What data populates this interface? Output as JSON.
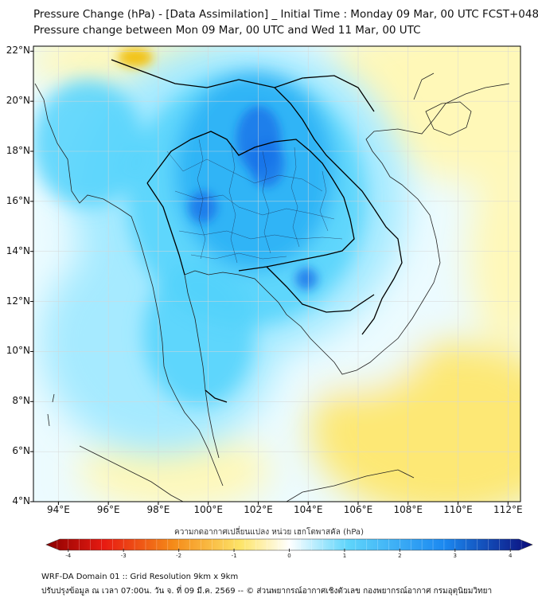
{
  "title": {
    "line1": "Pressure Change (hPa) - [Data Assimilation] _ Initial Time : Monday 09 Mar, 00 UTC FCST+048",
    "line2": "Pressure change between Mon 09 Mar, 00 UTC and Wed 11 Mar, 00 UTC"
  },
  "map": {
    "lat_labels": [
      "22°N",
      "20°N",
      "18°N",
      "16°N",
      "14°N",
      "12°N",
      "10°N",
      "8°N",
      "6°N",
      "4°N"
    ],
    "lon_labels": [
      "94°E",
      "96°E",
      "98°E",
      "100°E",
      "102°E",
      "104°E",
      "106°E",
      "108°E",
      "110°E",
      "112°E"
    ],
    "lat_values": [
      22,
      20,
      18,
      16,
      14,
      12,
      10,
      8,
      6,
      4
    ],
    "lon_values": [
      94,
      96,
      98,
      100,
      102,
      104,
      106,
      108,
      110,
      112
    ],
    "extent": {
      "lon_min": 93,
      "lon_max": 112.5,
      "lat_min": 4,
      "lat_max": 22.2
    },
    "field_colors": {
      "yellow_strong": "#f2c318",
      "yellow_mid": "#fde874",
      "yellow_light": "#fff8b8",
      "pale": "#ecfbff",
      "cyan_light": "#a6eaff",
      "cyan": "#52d2fb",
      "blue_mid": "#1fa9f4",
      "blue_deep": "#1572e8",
      "coast": "#222222",
      "grid": "#d6d6d6"
    }
  },
  "colorbar": {
    "label": "ความกดอากาศเปลี่ยนแปลง หน่วย เฮกโตพาสคัล (hPa)",
    "ticks": [
      "-4",
      "-3",
      "-2",
      "-1",
      "0",
      "1",
      "2",
      "3",
      "4"
    ],
    "tick_values": [
      -4,
      -3,
      -2,
      -1,
      0,
      1,
      2,
      3,
      4
    ],
    "vmin": -4.4,
    "vmax": 4.4,
    "colors": {
      "neg_end": "#8b0000",
      "red": "#e81b12",
      "orange": "#f58a18",
      "yellow": "#fde468",
      "zero": "#ffffff",
      "cyan": "#5fd5fb",
      "blue": "#1b88f0",
      "pos_end": "#0b0b7a"
    }
  },
  "footer": {
    "line1": "WRF-DA Domain 01 :: Grid Resolution 9km x 9km",
    "line2": "ปรับปรุงข้อมูล ณ เวลา 07:00น. วัน จ. ที่ 09 มี.ค. 2569 -- © ส่วนพยากรณ์อากาศเชิงตัวเลข กองพยากรณ์อากาศ กรมอุตุนิยมวิทยา"
  }
}
